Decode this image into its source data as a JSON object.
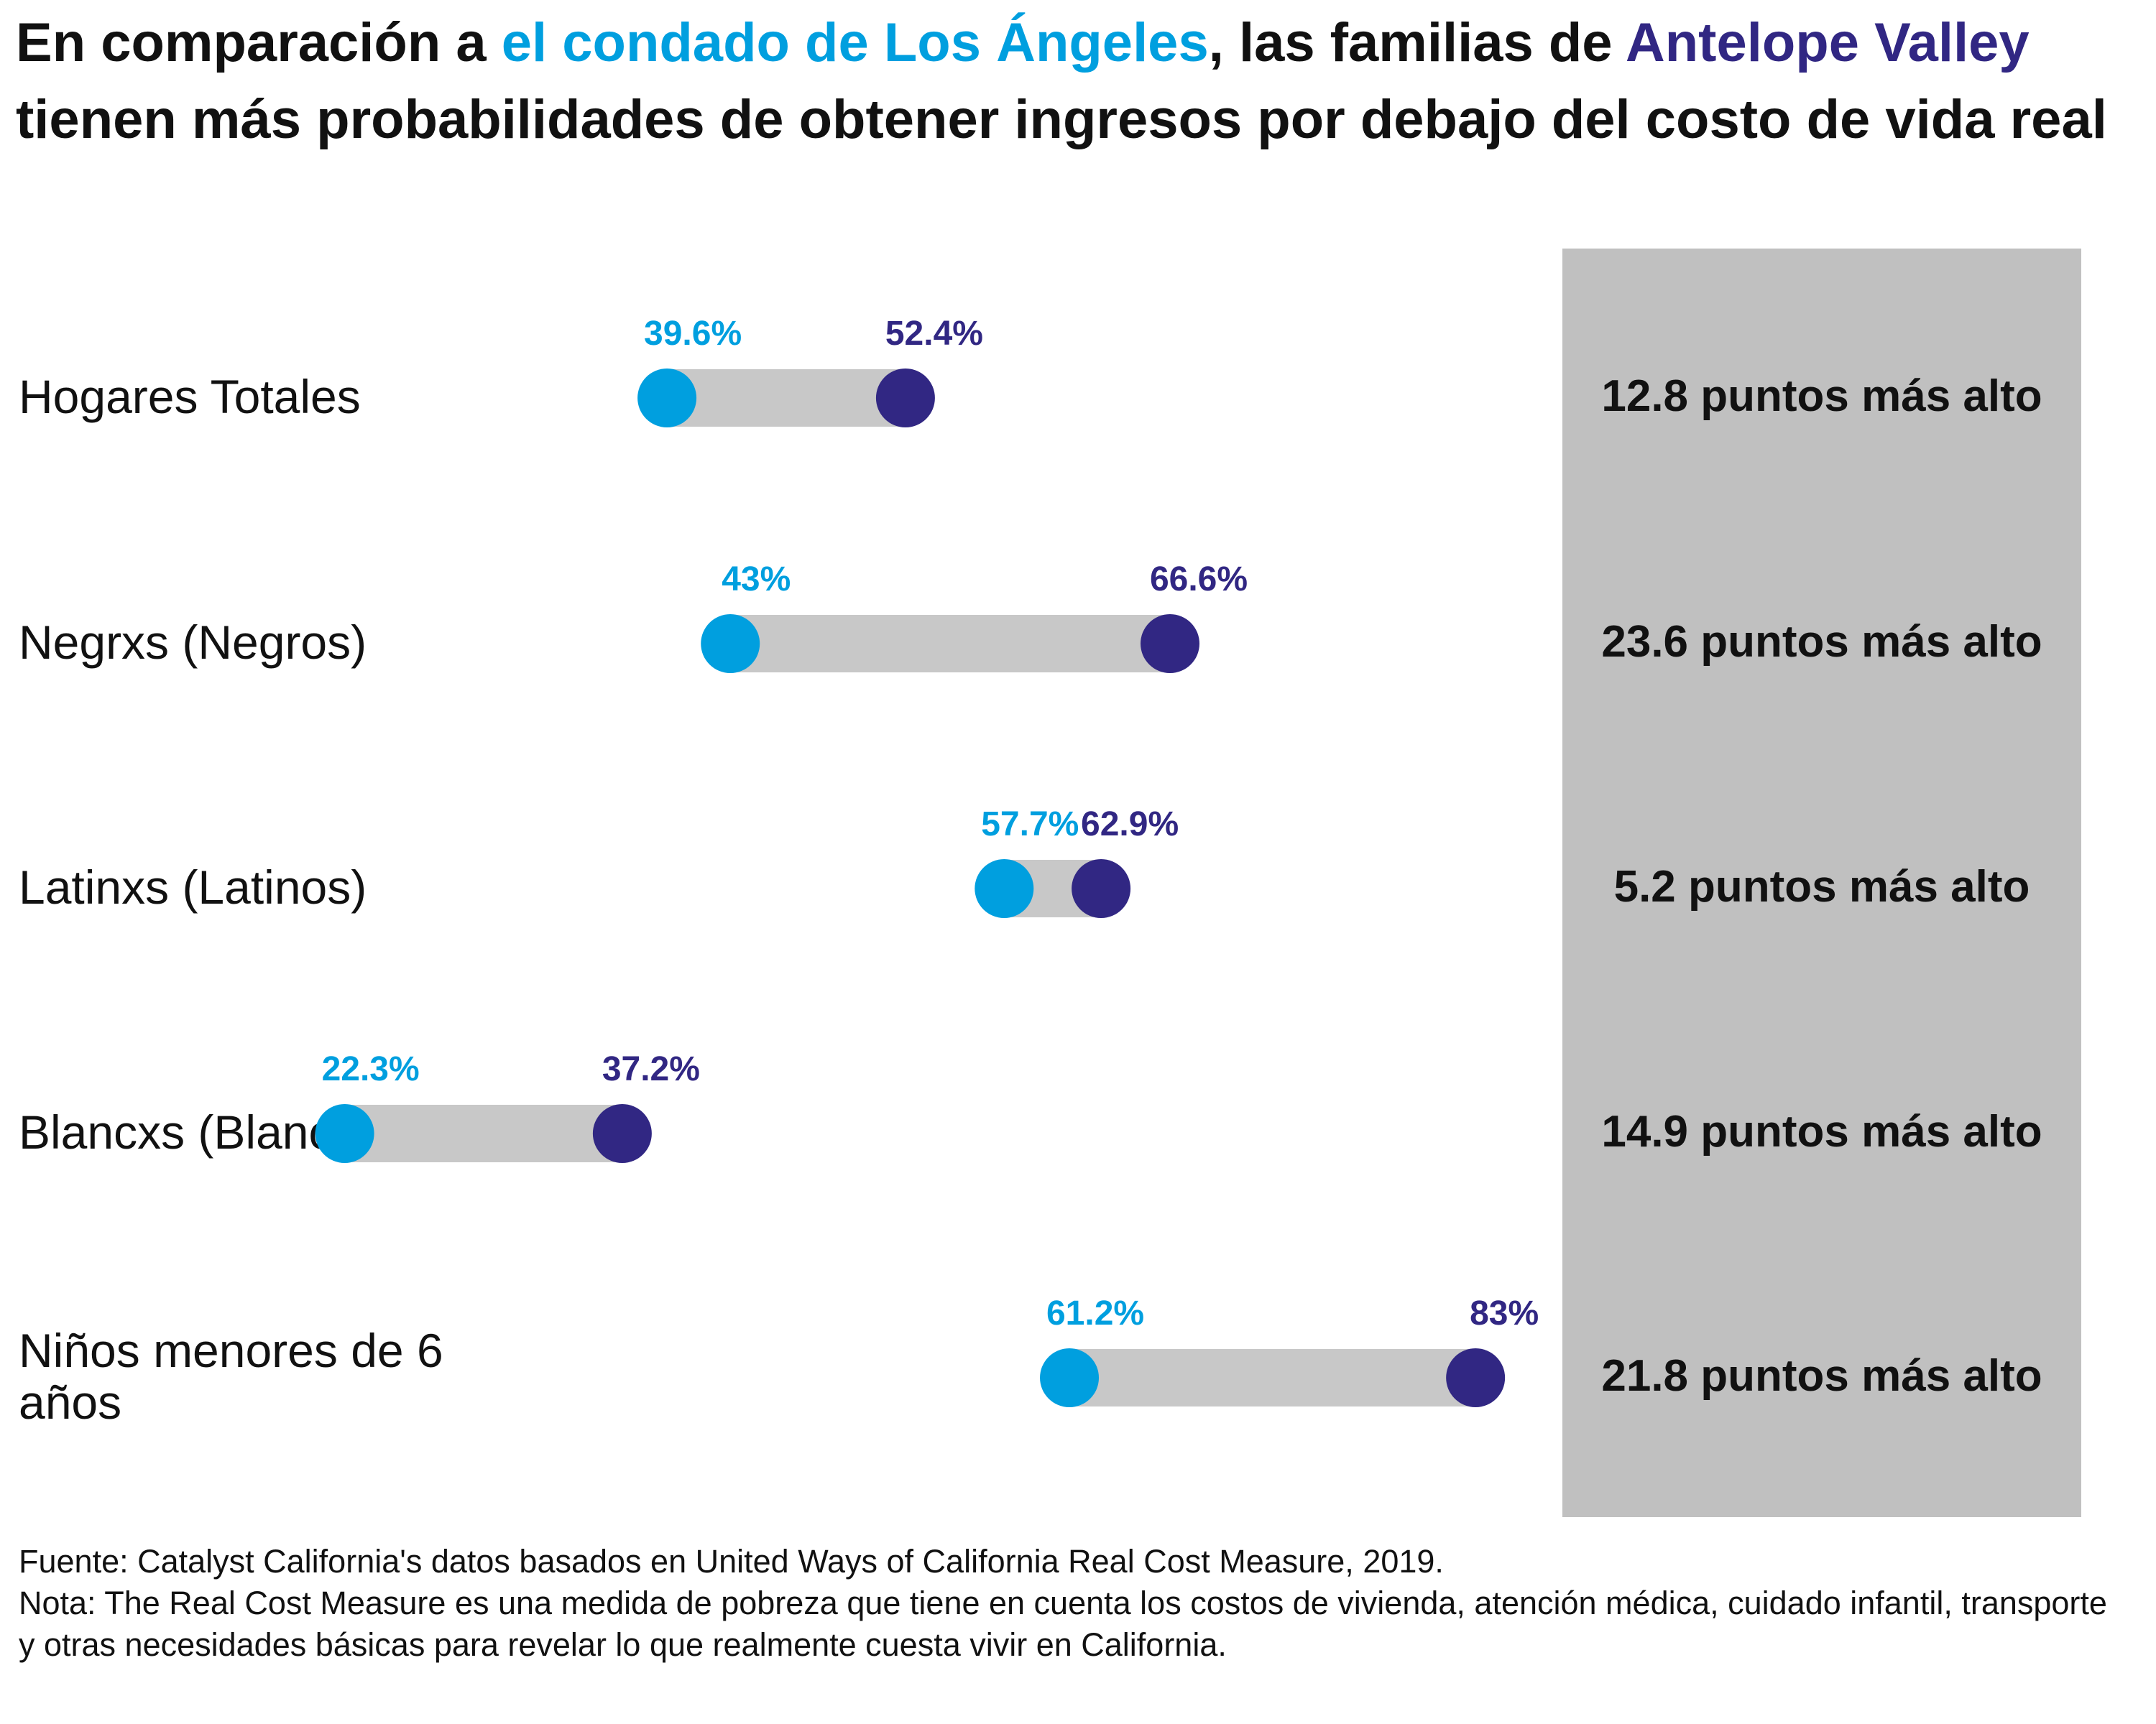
{
  "title": {
    "part1": "En comparación a ",
    "la_label": "el condado de Los Ángeles",
    "part2": ", las familias de ",
    "av_label": "Antelope Valley",
    "part3": " tienen más probabilidades de obtener ingresos por debajo del costo de vida real"
  },
  "colors": {
    "los_angeles": "#009fdf",
    "antelope_valley": "#312783",
    "connector": "#c8c8c8",
    "panel": "#c0c0c0"
  },
  "chart_data": {
    "type": "dumbbell",
    "unit": "%",
    "series": [
      {
        "name": "el condado de Los Ángeles",
        "values": [
          39.6,
          43,
          57.7,
          22.3,
          61.2
        ]
      },
      {
        "name": "Antelope Valley",
        "values": [
          52.4,
          66.6,
          62.9,
          37.2,
          83
        ]
      }
    ],
    "rows": [
      {
        "label": "Hogares Totales",
        "la": 39.6,
        "av": 52.4,
        "la_text": "39.6%",
        "av_text": "52.4%",
        "diff_text": "12.8 puntos más alto"
      },
      {
        "label": "Negrxs (Negros)",
        "la": 43,
        "av": 66.6,
        "la_text": "43%",
        "av_text": "66.6%",
        "diff_text": "23.6 puntos más alto"
      },
      {
        "label": "Latinxs (Latinos)",
        "la": 57.7,
        "av": 62.9,
        "la_text": "57.7%",
        "av_text": "62.9%",
        "diff_text": "5.2 puntos más alto"
      },
      {
        "label": "Blancxs (Blancos)",
        "la": 22.3,
        "av": 37.2,
        "la_text": "22.3%",
        "av_text": "37.2%",
        "diff_text": "14.9 puntos más alto"
      },
      {
        "label": "Niños menores de 6 años",
        "la": 61.2,
        "av": 83,
        "la_text": "61.2%",
        "av_text": "83%",
        "diff_text": "21.8 puntos más alto"
      }
    ],
    "grid": false,
    "legend": "title"
  },
  "footer": {
    "source": "Fuente: Catalyst California's datos basados en United Ways of California Real Cost Measure, 2019.",
    "note": "Nota: The Real Cost Measure es una medida de pobreza que tiene en cuenta los costos de vivienda, atención médica, cuidado infantil, transporte y otras necesidades básicas para revelar lo que realmente cuesta vivir en California."
  }
}
